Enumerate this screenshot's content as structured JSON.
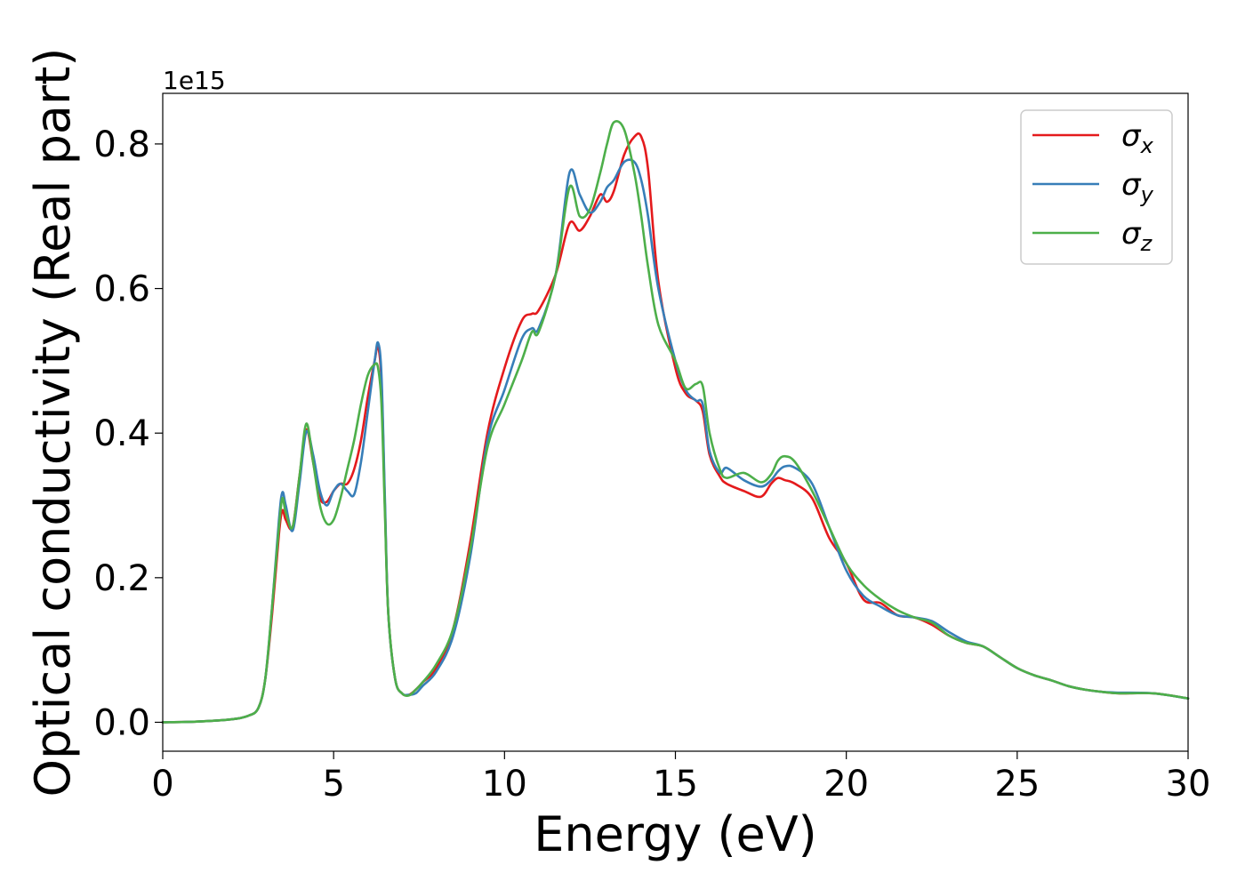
{
  "chart_data": {
    "type": "line",
    "title": "",
    "xlabel": "Energy (eV)",
    "ylabel": "Optical conductivity (Real part)",
    "y_offset_text": "1e15",
    "xlim": [
      0,
      30
    ],
    "ylim": [
      -0.04,
      0.87
    ],
    "xticks": [
      0,
      5,
      10,
      15,
      20,
      25,
      30
    ],
    "xtick_labels": [
      "0",
      "5",
      "10",
      "15",
      "20",
      "25",
      "30"
    ],
    "yticks": [
      0.0,
      0.2,
      0.4,
      0.6,
      0.8
    ],
    "ytick_labels": [
      "0.0",
      "0.2",
      "0.4",
      "0.6",
      "0.8"
    ],
    "grid": false,
    "legend_position": "top-right",
    "series": [
      {
        "name": "σx",
        "symbol": "σ",
        "subscript": "x",
        "color": "#e41a1c",
        "x": [
          0,
          1,
          2,
          2.5,
          2.8,
          3.0,
          3.2,
          3.4,
          3.5,
          3.6,
          3.8,
          4.0,
          4.2,
          4.4,
          4.6,
          4.8,
          5.0,
          5.2,
          5.4,
          5.6,
          5.8,
          6.0,
          6.2,
          6.3,
          6.4,
          6.5,
          6.6,
          6.8,
          7.0,
          7.2,
          7.4,
          7.6,
          8.0,
          8.5,
          9.0,
          9.5,
          10.0,
          10.5,
          10.8,
          11.0,
          11.5,
          11.9,
          12.2,
          12.5,
          12.8,
          13.0,
          13.2,
          13.5,
          13.8,
          14.0,
          14.2,
          14.5,
          15.0,
          15.3,
          15.6,
          15.8,
          16.0,
          16.3,
          16.5,
          17.0,
          17.5,
          17.8,
          18.0,
          18.2,
          18.5,
          19.0,
          19.5,
          20.0,
          20.5,
          21.0,
          21.5,
          22.0,
          22.5,
          23.0,
          23.5,
          24.0,
          24.5,
          25.0,
          25.5,
          26.0,
          26.5,
          27.0,
          27.5,
          28.0,
          29.0,
          30.0
        ],
        "y": [
          0.0,
          0.001,
          0.004,
          0.009,
          0.02,
          0.06,
          0.15,
          0.26,
          0.293,
          0.28,
          0.27,
          0.34,
          0.405,
          0.36,
          0.31,
          0.305,
          0.32,
          0.33,
          0.33,
          0.35,
          0.39,
          0.45,
          0.5,
          0.52,
          0.47,
          0.3,
          0.15,
          0.06,
          0.04,
          0.038,
          0.045,
          0.055,
          0.075,
          0.13,
          0.25,
          0.4,
          0.49,
          0.555,
          0.565,
          0.57,
          0.62,
          0.69,
          0.68,
          0.7,
          0.73,
          0.72,
          0.735,
          0.785,
          0.81,
          0.81,
          0.765,
          0.61,
          0.49,
          0.455,
          0.445,
          0.43,
          0.37,
          0.34,
          0.33,
          0.32,
          0.312,
          0.33,
          0.338,
          0.335,
          0.33,
          0.31,
          0.255,
          0.22,
          0.17,
          0.165,
          0.148,
          0.145,
          0.135,
          0.12,
          0.11,
          0.105,
          0.09,
          0.075,
          0.065,
          0.058,
          0.05,
          0.045,
          0.042,
          0.04,
          0.04,
          0.033
        ]
      },
      {
        "name": "σy",
        "symbol": "σ",
        "subscript": "y",
        "color": "#377eb8",
        "x": [
          0,
          1,
          2,
          2.5,
          2.8,
          3.0,
          3.2,
          3.4,
          3.5,
          3.6,
          3.8,
          4.0,
          4.2,
          4.4,
          4.6,
          4.8,
          5.0,
          5.2,
          5.4,
          5.6,
          5.8,
          6.0,
          6.2,
          6.3,
          6.4,
          6.5,
          6.6,
          6.8,
          7.0,
          7.2,
          7.4,
          7.6,
          8.0,
          8.5,
          9.0,
          9.5,
          10.0,
          10.5,
          10.8,
          11.0,
          11.5,
          11.9,
          12.2,
          12.5,
          12.8,
          13.0,
          13.2,
          13.5,
          13.8,
          14.0,
          14.2,
          14.5,
          15.0,
          15.3,
          15.6,
          15.8,
          16.0,
          16.3,
          16.5,
          17.0,
          17.5,
          17.8,
          18.0,
          18.2,
          18.5,
          19.0,
          19.5,
          20.0,
          20.5,
          21.0,
          21.5,
          22.0,
          22.5,
          23.0,
          23.5,
          24.0,
          24.5,
          25.0,
          25.5,
          26.0,
          26.5,
          27.0,
          27.5,
          28.0,
          29.0,
          30.0
        ],
        "y": [
          0.0,
          0.001,
          0.004,
          0.009,
          0.02,
          0.06,
          0.16,
          0.28,
          0.318,
          0.3,
          0.265,
          0.33,
          0.402,
          0.37,
          0.32,
          0.3,
          0.32,
          0.33,
          0.32,
          0.315,
          0.36,
          0.43,
          0.5,
          0.525,
          0.48,
          0.31,
          0.15,
          0.06,
          0.04,
          0.038,
          0.04,
          0.05,
          0.07,
          0.12,
          0.23,
          0.39,
          0.46,
          0.53,
          0.545,
          0.545,
          0.62,
          0.76,
          0.73,
          0.705,
          0.72,
          0.74,
          0.75,
          0.775,
          0.775,
          0.75,
          0.7,
          0.6,
          0.5,
          0.46,
          0.445,
          0.44,
          0.375,
          0.345,
          0.352,
          0.335,
          0.326,
          0.335,
          0.347,
          0.354,
          0.352,
          0.33,
          0.27,
          0.21,
          0.175,
          0.16,
          0.148,
          0.145,
          0.14,
          0.125,
          0.112,
          0.105,
          0.09,
          0.075,
          0.065,
          0.058,
          0.05,
          0.045,
          0.042,
          0.041,
          0.04,
          0.033
        ]
      },
      {
        "name": "σz",
        "symbol": "σ",
        "subscript": "z",
        "color": "#4daf4a",
        "x": [
          0,
          1,
          2,
          2.5,
          2.8,
          3.0,
          3.2,
          3.4,
          3.5,
          3.6,
          3.8,
          4.0,
          4.2,
          4.4,
          4.6,
          4.8,
          5.0,
          5.2,
          5.4,
          5.6,
          5.8,
          6.0,
          6.2,
          6.3,
          6.4,
          6.5,
          6.6,
          6.8,
          7.0,
          7.2,
          7.4,
          7.6,
          8.0,
          8.5,
          9.0,
          9.5,
          10.0,
          10.5,
          10.8,
          11.0,
          11.5,
          11.9,
          12.2,
          12.5,
          12.8,
          13.0,
          13.2,
          13.5,
          13.8,
          14.0,
          14.2,
          14.5,
          15.0,
          15.3,
          15.6,
          15.8,
          16.0,
          16.3,
          16.5,
          17.0,
          17.5,
          17.8,
          18.0,
          18.2,
          18.5,
          19.0,
          19.5,
          20.0,
          20.5,
          21.0,
          21.5,
          22.0,
          22.5,
          23.0,
          23.5,
          24.0,
          24.5,
          25.0,
          25.5,
          26.0,
          26.5,
          27.0,
          27.5,
          28.0,
          29.0,
          30.0
        ],
        "y": [
          0.0,
          0.001,
          0.004,
          0.009,
          0.02,
          0.06,
          0.16,
          0.27,
          0.31,
          0.29,
          0.27,
          0.34,
          0.413,
          0.36,
          0.3,
          0.275,
          0.28,
          0.31,
          0.35,
          0.39,
          0.44,
          0.48,
          0.495,
          0.49,
          0.44,
          0.29,
          0.15,
          0.06,
          0.04,
          0.037,
          0.045,
          0.055,
          0.08,
          0.13,
          0.24,
          0.38,
          0.44,
          0.5,
          0.54,
          0.54,
          0.62,
          0.74,
          0.7,
          0.71,
          0.76,
          0.8,
          0.83,
          0.82,
          0.76,
          0.7,
          0.63,
          0.55,
          0.5,
          0.462,
          0.468,
          0.465,
          0.4,
          0.35,
          0.338,
          0.345,
          0.332,
          0.343,
          0.362,
          0.368,
          0.36,
          0.32,
          0.27,
          0.22,
          0.19,
          0.17,
          0.155,
          0.145,
          0.138,
          0.12,
          0.11,
          0.105,
          0.09,
          0.075,
          0.065,
          0.058,
          0.05,
          0.045,
          0.042,
          0.04,
          0.04,
          0.033
        ]
      }
    ]
  }
}
